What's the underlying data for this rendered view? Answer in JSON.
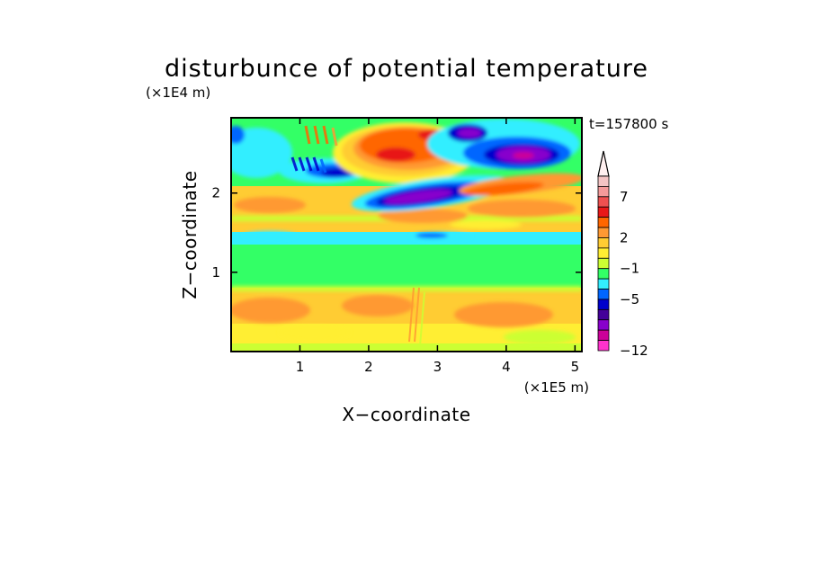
{
  "chart_data": {
    "type": "heatmap",
    "title": "disturbunce of potential temperature",
    "time_label": "t=157800 s",
    "xlabel": "X−coordinate",
    "ylabel": "Z−coordinate",
    "x_unit": "(×1E5 m)",
    "y_unit": "(×1E4 m)",
    "x_range": [
      0,
      5.1
    ],
    "y_range": [
      0,
      2.95
    ],
    "x_ticks": [
      "1",
      "2",
      "3",
      "4",
      "5"
    ],
    "x_tick_values": [
      1,
      2,
      3,
      4,
      5
    ],
    "y_ticks": [
      "1",
      "2"
    ],
    "y_tick_values": [
      1,
      2
    ],
    "colorbar": {
      "tick_labels": [
        "7",
        "2",
        "−1",
        "−5",
        "−12"
      ],
      "tick_values": [
        7,
        2,
        -1,
        -5,
        -12
      ],
      "colors_top_to_bottom": [
        "#f4c4c4",
        "#f49a9a",
        "#ee5050",
        "#e81818",
        "#ff6600",
        "#ff9933",
        "#ffcc33",
        "#ffee33",
        "#ccff33",
        "#33ff66",
        "#33eeff",
        "#0066ff",
        "#0000cc",
        "#440099",
        "#8800cc",
        "#cc0099",
        "#ff33cc"
      ],
      "arrow_color": "#fff0f0"
    },
    "field_description_layers": [
      {
        "z": [
          0.0,
          0.12
        ],
        "value": 2
      },
      {
        "z": [
          0.12,
          0.35
        ],
        "value": 1
      },
      {
        "z": [
          0.35,
          0.8
        ],
        "value": 2
      },
      {
        "z": [
          0.8,
          1.38
        ],
        "value": 0
      },
      {
        "z": [
          1.38,
          1.55
        ],
        "value": -1
      },
      {
        "z": [
          1.55,
          2.1
        ],
        "value": 2
      },
      {
        "z": [
          2.1,
          2.95
        ],
        "value": 0
      }
    ]
  }
}
